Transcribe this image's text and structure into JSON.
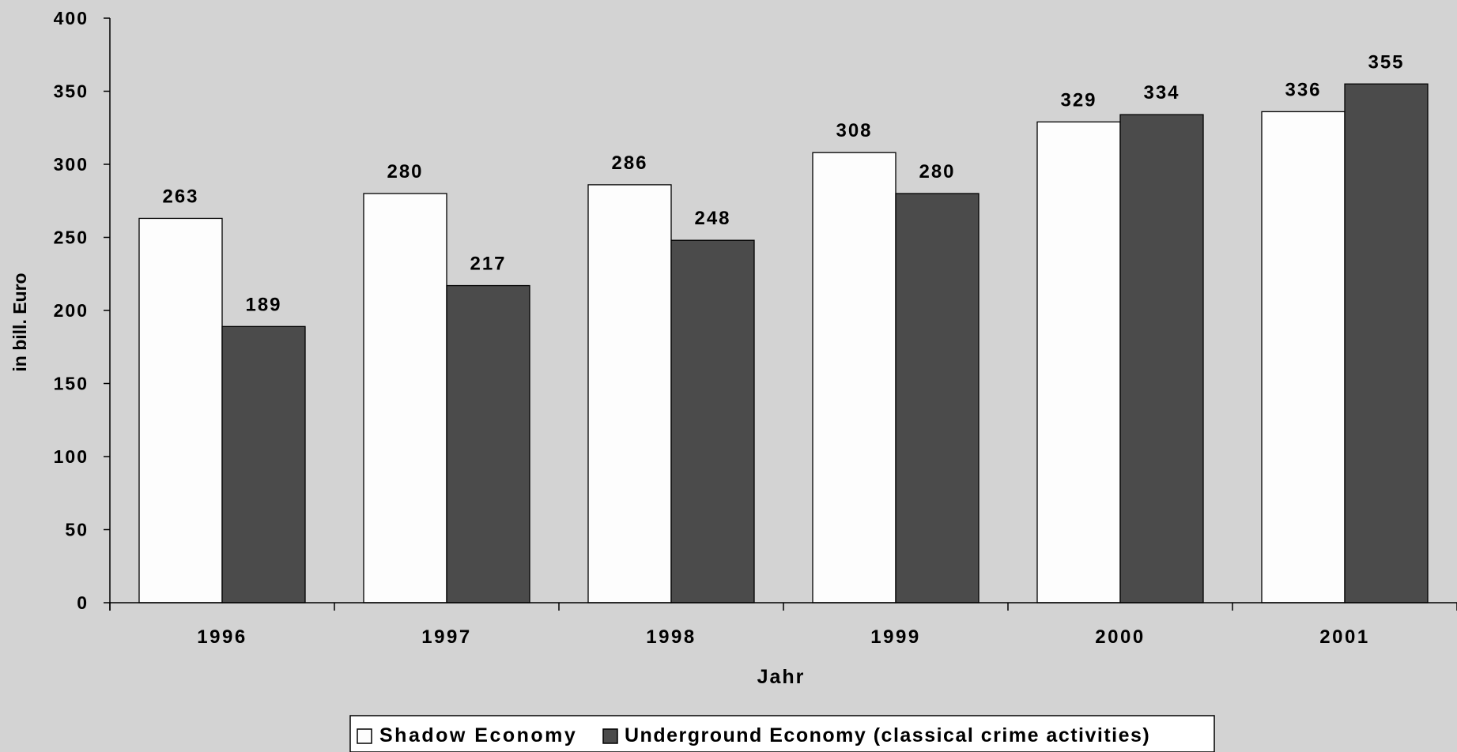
{
  "chart_data": {
    "type": "bar",
    "title": "",
    "xlabel": "Jahr",
    "ylabel": "in bill. Euro",
    "categories": [
      "1996",
      "1997",
      "1998",
      "1999",
      "2000",
      "2001"
    ],
    "series": [
      {
        "name": "Shadow Economy",
        "values": [
          263,
          280,
          286,
          308,
          329,
          336
        ],
        "color": "#fdfdfd"
      },
      {
        "name": "Underground Economy (classical crime activities)",
        "values": [
          189,
          217,
          248,
          280,
          334,
          355
        ],
        "color": "#4b4b4b"
      }
    ],
    "ylim": [
      0,
      400
    ],
    "yticks": [
      "0",
      "50",
      "100",
      "150",
      "200",
      "250",
      "300",
      "350",
      "400"
    ],
    "grid": false,
    "legend_position": "bottom-center",
    "background_color": "#d3d3d3",
    "bar_outline_color": "#000000"
  }
}
